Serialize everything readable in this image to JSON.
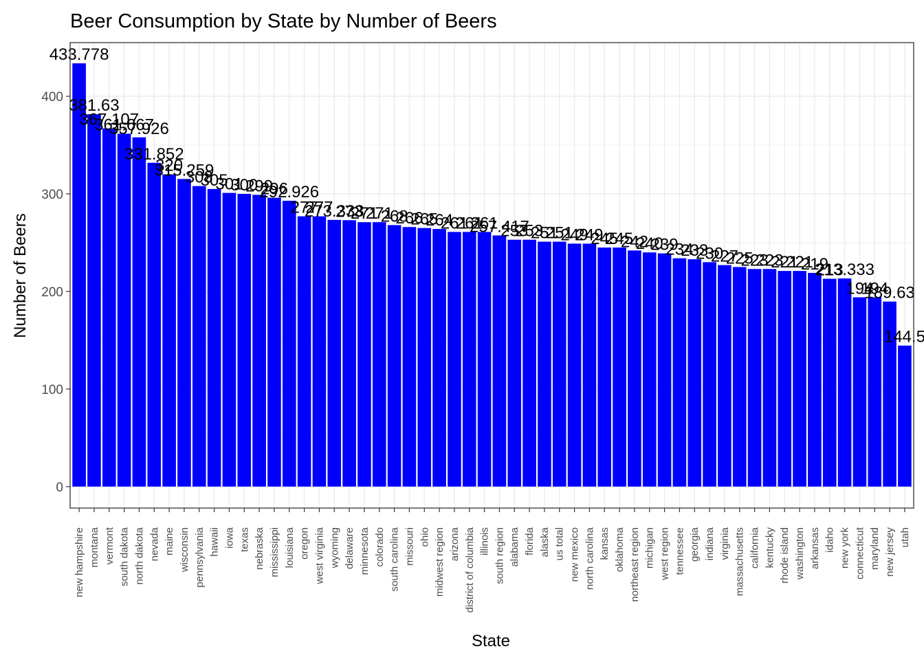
{
  "chart_data": {
    "type": "bar",
    "title": "Beer Consumption by State by Number of Beers",
    "xlabel": "State",
    "ylabel": "Number of Beers",
    "ylim": [
      -22,
      455
    ],
    "yticks": [
      0,
      100,
      200,
      300,
      400
    ],
    "grid": true,
    "legend": "none",
    "colors": {
      "bar": "#0000ff",
      "grid": "#ebebeb",
      "panel_border": "#333333",
      "tick_text": "#4d4d4d",
      "text": "#000000"
    },
    "categories": [
      "new hampshire",
      "montana",
      "vermont",
      "south dakota",
      "north dakota",
      "nevada",
      "maine",
      "wisconsin",
      "pennsylvania",
      "hawaii",
      "iowa",
      "texas",
      "nebraska",
      "mississippi",
      "louisiana",
      "oregon",
      "west virginia",
      "wyoming",
      "delaware",
      "minnesota",
      "colorado",
      "south carolina",
      "missouri",
      "ohio",
      "midwest region",
      "arizona",
      "district of columbia",
      "illinois",
      "south region",
      "alabama",
      "florida",
      "alaska",
      "us total",
      "new mexico",
      "north carolina",
      "kansas",
      "oklahoma",
      "northeast region",
      "michigan",
      "west region",
      "tennessee",
      "georgia",
      "indiana",
      "virginia",
      "massachusetts",
      "california",
      "kentucky",
      "rhode island",
      "washington",
      "arkansas",
      "idaho",
      "new york",
      "connecticut",
      "maryland",
      "new jersey",
      "utah"
    ],
    "values": [
      433.778,
      381.63,
      367.107,
      361.667,
      357.926,
      331.852,
      320.0,
      315.259,
      308.0,
      305.0,
      301.0,
      300.0,
      299.0,
      296.0,
      292.926,
      277.0,
      277.0,
      273.333,
      273.0,
      271.0,
      271.0,
      268.0,
      266.0,
      265.0,
      264.0,
      261.0,
      261.0,
      261.0,
      257.417,
      253.0,
      253.0,
      251.0,
      251.0,
      249.0,
      249.0,
      245.0,
      245.0,
      242.0,
      240.0,
      239.0,
      234.0,
      233.0,
      230.0,
      227.0,
      225.0,
      223.0,
      223.0,
      221.0,
      221.0,
      219.0,
      213.0,
      213.333,
      194.0,
      194.0,
      189.63,
      144.5
    ],
    "labels": [
      "433.778",
      "381.63",
      "367.107",
      "361.667",
      "357.926",
      "331.852",
      "320",
      "315.259",
      "308",
      "305",
      "301",
      "300",
      "299",
      "296",
      "292.926",
      "277",
      "277",
      "273.333",
      "273",
      "271",
      "271",
      "268",
      "266",
      "265",
      "264",
      "261",
      "261",
      "261",
      "257.417",
      "253",
      "253",
      "251",
      "251",
      "249",
      "249",
      "245",
      "245",
      "242",
      "240",
      "239",
      "234",
      "233",
      "230",
      "227",
      "225",
      "223",
      "223",
      "221",
      "221",
      "219",
      "213",
      "213.333",
      "194",
      "194",
      "189.63",
      "144.5"
    ]
  }
}
